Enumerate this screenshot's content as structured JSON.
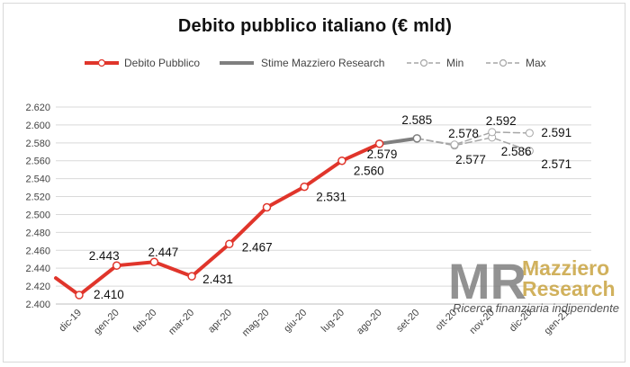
{
  "chart_data": {
    "type": "line",
    "title": "Debito pubblico italiano (€ mld)",
    "xlabel": "",
    "ylabel": "",
    "categories": [
      "dic-19",
      "gen-20",
      "feb-20",
      "mar-20",
      "apr-20",
      "mag-20",
      "giu-20",
      "lug-20",
      "ago-20",
      "set-20",
      "ott-20",
      "nov-20",
      "dic-20",
      "gen-21"
    ],
    "ylim": [
      2400,
      2620
    ],
    "ytick_step": 20,
    "yticks": [
      "2.400",
      "2.420",
      "2.440",
      "2.460",
      "2.480",
      "2.500",
      "2.520",
      "2.540",
      "2.560",
      "2.580",
      "2.600",
      "2.620"
    ],
    "grid": true,
    "legend_position": "top",
    "series": [
      {
        "name": "Debito Pubblico",
        "color": "#e0352b",
        "lead_in_value": 2429,
        "points": [
          {
            "x": "dic-19",
            "y": 2410,
            "label": "2.410"
          },
          {
            "x": "gen-20",
            "y": 2443,
            "label": "2.443"
          },
          {
            "x": "feb-20",
            "y": 2447,
            "label": "2.447"
          },
          {
            "x": "mar-20",
            "y": 2431,
            "label": "2.431"
          },
          {
            "x": "apr-20",
            "y": 2467,
            "label": "2.467"
          },
          {
            "x": "mag-20",
            "y": 2508,
            "label": ""
          },
          {
            "x": "giu-20",
            "y": 2531,
            "label": "2.531"
          },
          {
            "x": "lug-20",
            "y": 2560,
            "label": "2.560"
          },
          {
            "x": "ago-20",
            "y": 2579,
            "label": "2.579"
          }
        ]
      },
      {
        "name": "Stime Mazziero Research",
        "color": "#7f7f7f",
        "points": [
          {
            "x": "ago-20",
            "y": 2579,
            "label": ""
          },
          {
            "x": "set-20",
            "y": 2585,
            "label": "2.585"
          }
        ]
      },
      {
        "name": "Min",
        "color": "#a6a6a6",
        "points": [
          {
            "x": "set-20",
            "y": 2585,
            "label": ""
          },
          {
            "x": "ott-20",
            "y": 2577,
            "label": "2.577"
          },
          {
            "x": "nov-20",
            "y": 2586,
            "label": "2.586"
          },
          {
            "x": "dic-20",
            "y": 2571,
            "label": "2.571"
          }
        ]
      },
      {
        "name": "Max",
        "color": "#a6a6a6",
        "points": [
          {
            "x": "set-20",
            "y": 2585,
            "label": ""
          },
          {
            "x": "ott-20",
            "y": 2578,
            "label": "2.578"
          },
          {
            "x": "nov-20",
            "y": 2592,
            "label": "2.592"
          },
          {
            "x": "dic-20",
            "y": 2591,
            "label": "2.591"
          }
        ]
      }
    ]
  },
  "watermark": {
    "logo_text": "MR",
    "name_line1": "Mazziero",
    "name_line2": "Research",
    "tagline": "Ricerca finanziaria indipendente",
    "logo_color": "#7f7f7f",
    "name_color": "#c9a441"
  }
}
